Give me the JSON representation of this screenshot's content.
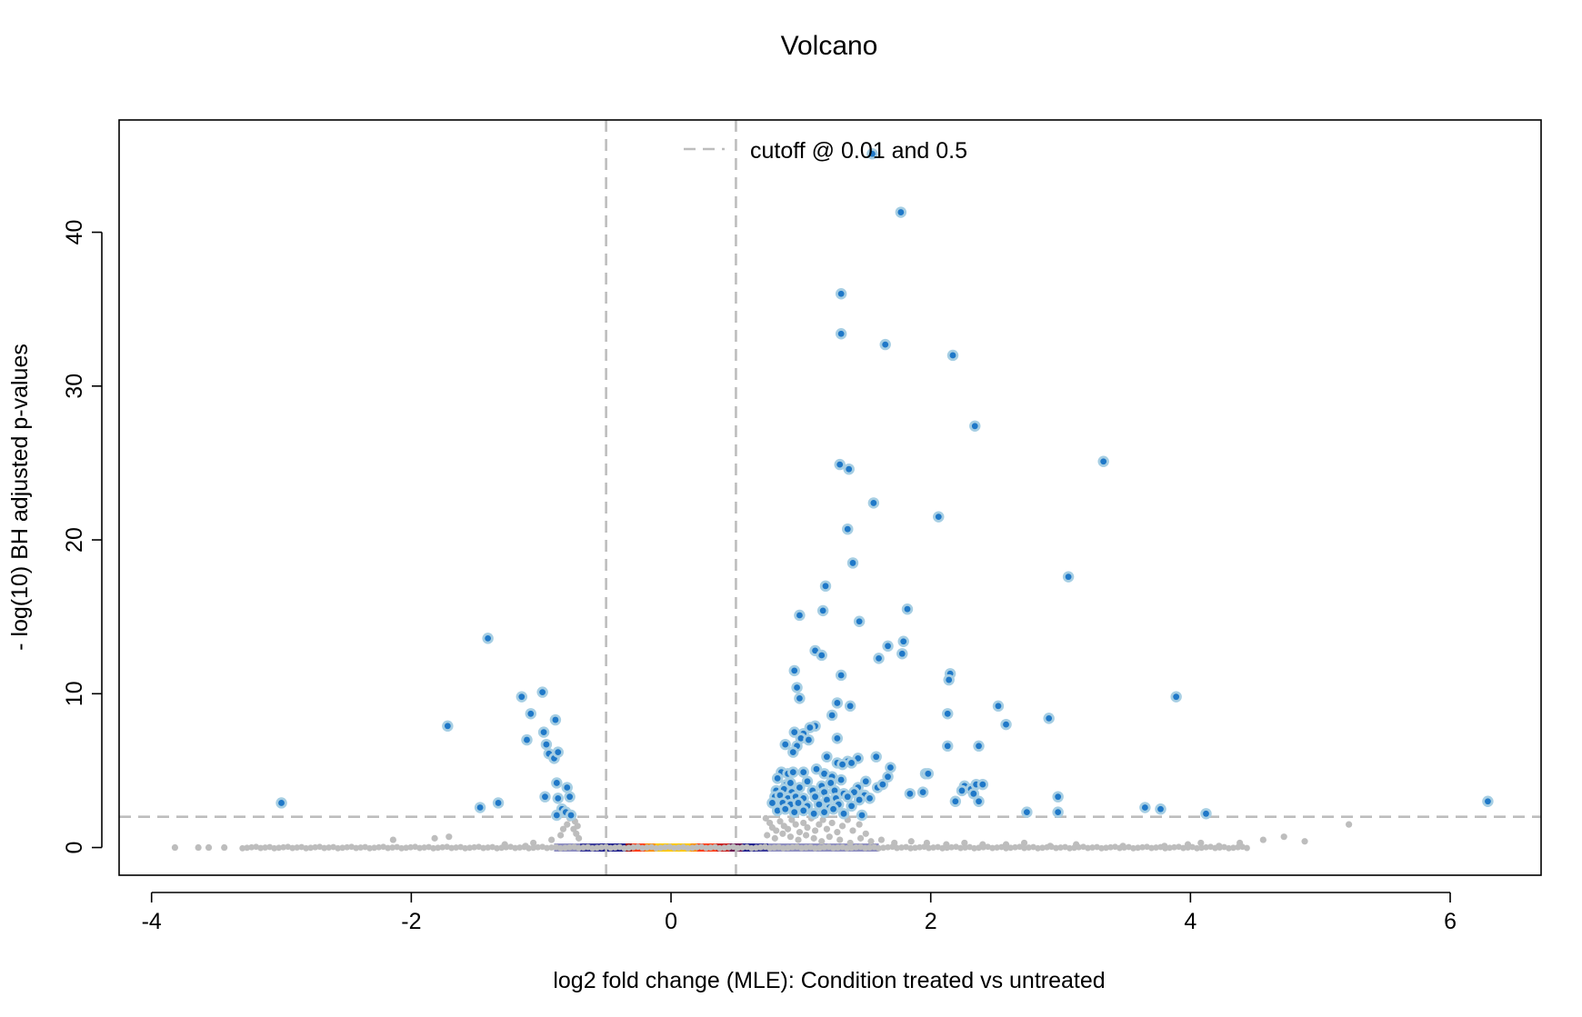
{
  "chart_data": {
    "type": "scatter",
    "title": "Volcano",
    "xlabel": "log2 fold change (MLE): Condition treated vs untreated",
    "ylabel": "- log(10) BH adjusted p-values",
    "xlim": [
      -4.25,
      6.7
    ],
    "ylim": [
      -1.8,
      47.3
    ],
    "x_ticks": [
      -4,
      -2,
      0,
      2,
      4,
      6
    ],
    "x_tick_labels": [
      "-4",
      "-2",
      "0",
      "2",
      "4",
      "6"
    ],
    "y_ticks": [
      0,
      10,
      20,
      30,
      40
    ],
    "y_tick_labels": [
      "0",
      "10",
      "20",
      "30",
      "40"
    ],
    "grid": false,
    "legend": {
      "position": "top-center",
      "entries": [
        {
          "label": "cutoff @ 0.01 and 0.5",
          "style": "dashed",
          "color": "#bdbdbd"
        }
      ]
    },
    "cutoffs": {
      "vertical": [
        -0.5,
        0.5
      ],
      "horizontal": 2.0,
      "color": "#bdbdbd"
    },
    "colors": {
      "significant_fill": "#1f78c8",
      "significant_ring": "#a6cee3",
      "nonsignificant": "#bdbdbd",
      "density_low": "#8c8cc0",
      "density_mid": "#1c1c8c",
      "density_high_red": "#c81e1e",
      "density_high_orange": "#ff6a00",
      "density_peak": "#ffc800"
    },
    "density_band": [
      {
        "x_from": -0.9,
        "x_to": -0.7,
        "color": "#8c8cc0"
      },
      {
        "x_from": -0.7,
        "x_to": -0.55,
        "color": "#3a3a9a"
      },
      {
        "x_from": -0.55,
        "x_to": -0.35,
        "color": "#1c1c8c"
      },
      {
        "x_from": -0.35,
        "x_to": -0.3,
        "color": "#a01010"
      },
      {
        "x_from": -0.3,
        "x_to": -0.2,
        "color": "#ff3c14"
      },
      {
        "x_from": -0.2,
        "x_to": -0.12,
        "color": "#ff8c00"
      },
      {
        "x_from": -0.12,
        "x_to": 0.15,
        "color": "#ffc800"
      },
      {
        "x_from": 0.15,
        "x_to": 0.2,
        "color": "#ff8c00"
      },
      {
        "x_from": 0.2,
        "x_to": 0.35,
        "color": "#ff3c14"
      },
      {
        "x_from": 0.35,
        "x_to": 0.45,
        "color": "#c81e1e"
      },
      {
        "x_from": 0.45,
        "x_to": 0.55,
        "color": "#6a1050"
      },
      {
        "x_from": 0.55,
        "x_to": 0.65,
        "color": "#1c1c8c"
      },
      {
        "x_from": 0.65,
        "x_to": 0.75,
        "color": "#3a3a9a"
      },
      {
        "x_from": 0.75,
        "x_to": 1.6,
        "color": "#8c8cc0"
      }
    ],
    "series": [
      {
        "name": "significant",
        "points": [
          [
            1.55,
            45.1
          ],
          [
            1.77,
            41.3
          ],
          [
            1.31,
            36.0
          ],
          [
            1.31,
            33.4
          ],
          [
            1.65,
            32.7
          ],
          [
            2.17,
            32.0
          ],
          [
            2.34,
            27.4
          ],
          [
            1.3,
            24.9
          ],
          [
            1.37,
            24.6
          ],
          [
            3.33,
            25.1
          ],
          [
            1.56,
            22.4
          ],
          [
            2.06,
            21.5
          ],
          [
            1.36,
            20.7
          ],
          [
            1.4,
            18.5
          ],
          [
            3.06,
            17.6
          ],
          [
            1.19,
            17.0
          ],
          [
            1.17,
            15.4
          ],
          [
            0.99,
            15.1
          ],
          [
            1.82,
            15.5
          ],
          [
            1.45,
            14.7
          ],
          [
            1.79,
            13.4
          ],
          [
            1.67,
            13.1
          ],
          [
            1.11,
            12.8
          ],
          [
            1.16,
            12.5
          ],
          [
            1.6,
            12.3
          ],
          [
            1.78,
            12.6
          ],
          [
            0.95,
            11.5
          ],
          [
            1.31,
            11.2
          ],
          [
            2.15,
            11.3
          ],
          [
            2.14,
            10.9
          ],
          [
            0.97,
            10.4
          ],
          [
            0.99,
            9.7
          ],
          [
            1.28,
            9.4
          ],
          [
            1.38,
            9.2
          ],
          [
            2.52,
            9.2
          ],
          [
            3.89,
            9.8
          ],
          [
            1.24,
            8.6
          ],
          [
            2.13,
            8.7
          ],
          [
            2.91,
            8.4
          ],
          [
            1.11,
            7.9
          ],
          [
            1.07,
            7.8
          ],
          [
            2.58,
            8.0
          ],
          [
            1.02,
            7.4
          ],
          [
            0.95,
            7.5
          ],
          [
            1.0,
            7.1
          ],
          [
            1.06,
            7.0
          ],
          [
            1.28,
            7.1
          ],
          [
            0.97,
            6.6
          ],
          [
            0.88,
            6.7
          ],
          [
            2.13,
            6.6
          ],
          [
            2.37,
            6.6
          ],
          [
            0.94,
            6.2
          ],
          [
            1.2,
            5.9
          ],
          [
            1.36,
            5.6
          ],
          [
            1.44,
            5.8
          ],
          [
            1.58,
            5.9
          ],
          [
            1.28,
            5.5
          ],
          [
            1.39,
            5.5
          ],
          [
            1.32,
            5.4
          ],
          [
            1.12,
            5.1
          ],
          [
            1.69,
            5.2
          ],
          [
            1.67,
            4.6
          ],
          [
            1.96,
            4.8
          ],
          [
            1.98,
            4.8
          ],
          [
            0.85,
            4.9
          ],
          [
            0.9,
            4.8
          ],
          [
            0.94,
            4.9
          ],
          [
            1.02,
            4.9
          ],
          [
            1.18,
            4.8
          ],
          [
            1.24,
            4.6
          ],
          [
            1.31,
            4.4
          ],
          [
            1.5,
            4.3
          ],
          [
            0.82,
            4.5
          ],
          [
            0.89,
            4.1
          ],
          [
            0.92,
            4.2
          ],
          [
            1.05,
            4.3
          ],
          [
            1.16,
            4.0
          ],
          [
            1.23,
            4.2
          ],
          [
            1.44,
            3.9
          ],
          [
            1.59,
            3.9
          ],
          [
            1.63,
            4.1
          ],
          [
            2.26,
            4.0
          ],
          [
            2.31,
            3.8
          ],
          [
            2.35,
            4.1
          ],
          [
            2.4,
            4.1
          ],
          [
            0.81,
            3.7
          ],
          [
            0.87,
            3.8
          ],
          [
            0.93,
            3.6
          ],
          [
            0.99,
            3.9
          ],
          [
            1.09,
            3.7
          ],
          [
            1.18,
            3.6
          ],
          [
            1.26,
            3.7
          ],
          [
            1.33,
            3.5
          ],
          [
            1.41,
            3.6
          ],
          [
            1.49,
            3.4
          ],
          [
            1.84,
            3.5
          ],
          [
            1.94,
            3.6
          ],
          [
            2.24,
            3.7
          ],
          [
            2.33,
            3.5
          ],
          [
            0.8,
            3.3
          ],
          [
            0.84,
            3.4
          ],
          [
            0.9,
            3.2
          ],
          [
            0.96,
            3.3
          ],
          [
            1.02,
            3.2
          ],
          [
            1.11,
            3.3
          ],
          [
            1.2,
            3.1
          ],
          [
            1.27,
            3.2
          ],
          [
            1.36,
            3.3
          ],
          [
            1.45,
            3.1
          ],
          [
            1.53,
            3.2
          ],
          [
            2.19,
            3.0
          ],
          [
            2.37,
            3.0
          ],
          [
            2.98,
            3.3
          ],
          [
            0.78,
            2.9
          ],
          [
            0.86,
            2.9
          ],
          [
            0.92,
            2.8
          ],
          [
            0.98,
            2.9
          ],
          [
            1.05,
            2.7
          ],
          [
            1.14,
            2.8
          ],
          [
            1.22,
            2.6
          ],
          [
            1.29,
            2.8
          ],
          [
            1.39,
            2.7
          ],
          [
            0.82,
            2.4
          ],
          [
            0.88,
            2.5
          ],
          [
            0.95,
            2.3
          ],
          [
            1.02,
            2.4
          ],
          [
            1.1,
            2.2
          ],
          [
            1.18,
            2.3
          ],
          [
            1.25,
            2.5
          ],
          [
            1.33,
            2.2
          ],
          [
            1.47,
            2.1
          ],
          [
            2.74,
            2.3
          ],
          [
            2.98,
            2.3
          ],
          [
            3.65,
            2.6
          ],
          [
            3.77,
            2.5
          ],
          [
            4.12,
            2.2
          ],
          [
            6.29,
            3.0
          ],
          [
            -1.41,
            13.6
          ],
          [
            -0.99,
            10.1
          ],
          [
            -1.15,
            9.8
          ],
          [
            -1.72,
            7.9
          ],
          [
            -1.08,
            8.7
          ],
          [
            -0.89,
            8.3
          ],
          [
            -0.98,
            7.5
          ],
          [
            -1.11,
            7.0
          ],
          [
            -0.96,
            6.7
          ],
          [
            -0.94,
            6.1
          ],
          [
            -0.9,
            5.8
          ],
          [
            -0.87,
            6.2
          ],
          [
            -0.88,
            4.2
          ],
          [
            -0.8,
            3.9
          ],
          [
            -0.97,
            3.3
          ],
          [
            -0.78,
            3.3
          ],
          [
            -0.87,
            3.2
          ],
          [
            -1.33,
            2.9
          ],
          [
            -3.0,
            2.9
          ],
          [
            -1.47,
            2.6
          ],
          [
            -0.84,
            2.5
          ],
          [
            -0.81,
            2.3
          ],
          [
            -0.88,
            2.1
          ],
          [
            -0.77,
            2.1
          ]
        ]
      },
      {
        "name": "nonsignificant",
        "points": [
          [
            -3.82,
            0.0
          ],
          [
            -3.64,
            0.0
          ],
          [
            -3.56,
            0.0
          ],
          [
            -3.44,
            0.0
          ],
          [
            -2.14,
            0.5
          ],
          [
            -1.71,
            0.7
          ],
          [
            -1.82,
            0.6
          ],
          [
            -1.28,
            0.2
          ],
          [
            -0.78,
            1.9
          ],
          [
            -0.74,
            1.7
          ],
          [
            -0.72,
            1.4
          ],
          [
            -0.75,
            1.2
          ],
          [
            -0.73,
            0.9
          ],
          [
            -0.71,
            0.6
          ],
          [
            -0.8,
            1.5
          ],
          [
            -0.83,
            1.2
          ],
          [
            -0.85,
            0.8
          ],
          [
            -0.92,
            0.5
          ],
          [
            -1.06,
            0.3
          ],
          [
            -1.12,
            0.1
          ],
          [
            0.73,
            1.9
          ],
          [
            0.76,
            1.6
          ],
          [
            0.78,
            1.3
          ],
          [
            0.81,
            1.1
          ],
          [
            0.84,
            1.7
          ],
          [
            0.87,
            1.4
          ],
          [
            0.9,
            1.2
          ],
          [
            0.93,
            1.8
          ],
          [
            0.96,
            1.5
          ],
          [
            0.99,
            1.0
          ],
          [
            1.02,
            1.6
          ],
          [
            1.05,
            1.3
          ],
          [
            1.08,
            1.9
          ],
          [
            1.11,
            1.1
          ],
          [
            1.14,
            1.5
          ],
          [
            1.17,
            1.8
          ],
          [
            1.2,
            1.2
          ],
          [
            1.24,
            1.6
          ],
          [
            1.28,
            1.0
          ],
          [
            1.32,
            1.4
          ],
          [
            1.36,
            1.8
          ],
          [
            1.4,
            1.1
          ],
          [
            1.45,
            1.5
          ],
          [
            1.5,
            0.9
          ],
          [
            0.74,
            0.8
          ],
          [
            0.8,
            0.6
          ],
          [
            0.86,
            0.9
          ],
          [
            0.92,
            0.7
          ],
          [
            0.98,
            0.5
          ],
          [
            1.04,
            0.8
          ],
          [
            1.1,
            0.6
          ],
          [
            1.16,
            0.4
          ],
          [
            1.22,
            0.7
          ],
          [
            1.3,
            0.5
          ],
          [
            1.38,
            0.3
          ],
          [
            1.46,
            0.6
          ],
          [
            1.54,
            0.4
          ],
          [
            1.62,
            0.5
          ],
          [
            1.72,
            0.3
          ],
          [
            1.85,
            0.4
          ],
          [
            1.97,
            0.3
          ],
          [
            2.12,
            0.2
          ],
          [
            2.26,
            0.3
          ],
          [
            2.4,
            0.2
          ],
          [
            2.58,
            0.2
          ],
          [
            2.72,
            0.3
          ],
          [
            2.92,
            0.1
          ],
          [
            3.12,
            0.2
          ],
          [
            3.48,
            0.1
          ],
          [
            3.8,
            0.1
          ],
          [
            3.98,
            0.2
          ],
          [
            4.08,
            0.3
          ],
          [
            4.22,
            0.1
          ],
          [
            4.38,
            0.3
          ],
          [
            4.56,
            0.5
          ],
          [
            4.72,
            0.7
          ],
          [
            4.88,
            0.4
          ],
          [
            5.22,
            1.5
          ]
        ]
      }
    ],
    "baseline_spread": {
      "y": 0.0,
      "x_from": -3.3,
      "x_to": 4.45
    }
  }
}
